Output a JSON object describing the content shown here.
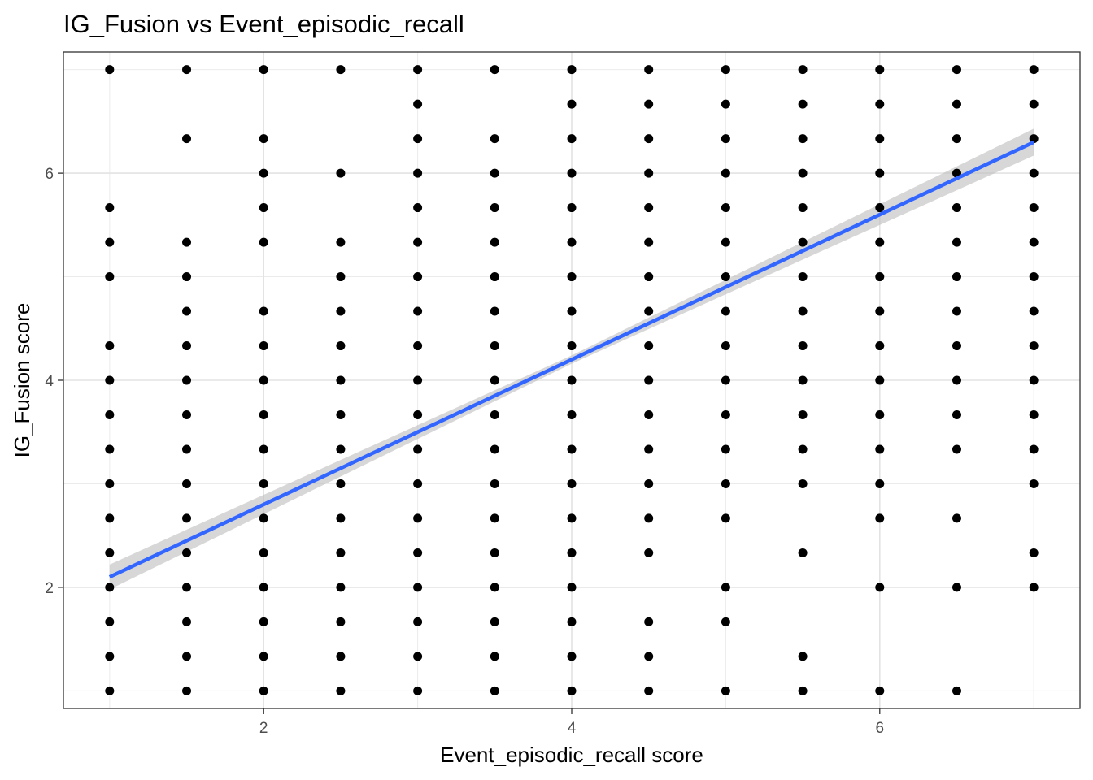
{
  "chart_data": {
    "type": "scatter",
    "title": "IG_Fusion vs Event_episodic_recall",
    "xlabel": "Event_episodic_recall score",
    "ylabel": "IG_Fusion score",
    "xlim": [
      0.7,
      7.3
    ],
    "ylim": [
      0.83,
      7.17
    ],
    "x_ticks": [
      2,
      4,
      6
    ],
    "y_ticks": [
      2,
      4,
      6
    ],
    "grid": true,
    "point_color": "#000000",
    "trend_color": "#3366FF",
    "ci_color": "#bdbdbd",
    "columns": [
      {
        "x": 1.0,
        "y": [
          7,
          5.667,
          5.333,
          5,
          4.333,
          4,
          3.667,
          3.333,
          3,
          2.667,
          2.333,
          2,
          1.667,
          1.333,
          1
        ]
      },
      {
        "x": 1.5,
        "y": [
          7,
          6.333,
          5.333,
          5,
          4.667,
          4.333,
          4,
          3.667,
          3.333,
          3,
          2.667,
          2.333,
          2,
          1.667,
          1.333,
          1
        ]
      },
      {
        "x": 2.0,
        "y": [
          7,
          6.333,
          6,
          5.667,
          5.333,
          4.667,
          4.333,
          4,
          3.667,
          3.333,
          3,
          2.667,
          2.333,
          2,
          1.667,
          1.333,
          1
        ]
      },
      {
        "x": 2.5,
        "y": [
          7,
          6,
          5.333,
          5,
          4.667,
          4.333,
          4,
          3.667,
          3.333,
          3,
          2.667,
          2.333,
          2,
          1.667,
          1.333,
          1
        ]
      },
      {
        "x": 3.0,
        "y": [
          7,
          6.667,
          6.333,
          6,
          5.667,
          5.333,
          5,
          4.667,
          4.333,
          4,
          3.667,
          3.333,
          3,
          2.667,
          2.333,
          2,
          1.667,
          1.333,
          1
        ]
      },
      {
        "x": 3.5,
        "y": [
          7,
          6.333,
          6,
          5.667,
          5.333,
          5,
          4.667,
          4.333,
          4,
          3.667,
          3.333,
          3,
          2.667,
          2.333,
          2,
          1.667,
          1.333,
          1
        ]
      },
      {
        "x": 4.0,
        "y": [
          7,
          6.667,
          6.333,
          6,
          5.667,
          5.333,
          5,
          4.667,
          4.333,
          4,
          3.667,
          3.333,
          3,
          2.667,
          2.333,
          2,
          1.667,
          1.333,
          1
        ]
      },
      {
        "x": 4.5,
        "y": [
          7,
          6.667,
          6.333,
          6,
          5.667,
          5.333,
          5,
          4.667,
          4.333,
          4,
          3.667,
          3.333,
          3,
          2.667,
          2.333,
          1.667,
          1.333,
          1
        ]
      },
      {
        "x": 5.0,
        "y": [
          7,
          6.667,
          6.333,
          6,
          5.667,
          5.333,
          5,
          4.667,
          4.333,
          4,
          3.667,
          3.333,
          3,
          2.667,
          2,
          1.667,
          1
        ]
      },
      {
        "x": 5.5,
        "y": [
          7,
          6.667,
          6.333,
          6,
          5.667,
          5.333,
          5,
          4.667,
          4.333,
          4,
          3.667,
          3.333,
          3,
          2.333,
          1.333,
          1
        ]
      },
      {
        "x": 6.0,
        "y": [
          7,
          6.667,
          6.333,
          6,
          5.667,
          5.333,
          5,
          4.667,
          4.333,
          4,
          3.667,
          3.333,
          3,
          2.667,
          2,
          1
        ]
      },
      {
        "x": 6.5,
        "y": [
          7,
          6.667,
          6.333,
          6,
          5.667,
          5.333,
          5,
          4.667,
          4.333,
          4,
          3.667,
          3.333,
          2.667,
          2,
          1
        ]
      },
      {
        "x": 7.0,
        "y": [
          7,
          6.667,
          6.333,
          6,
          5.667,
          5.333,
          5,
          4.667,
          4.333,
          4,
          3.667,
          3.333,
          3,
          2.333,
          2
        ]
      }
    ],
    "trend_line": {
      "x": [
        1,
        7
      ],
      "y": [
        2.1,
        6.3
      ]
    },
    "confidence_band": {
      "x": [
        1,
        4,
        7
      ],
      "lower": [
        1.98,
        4.16,
        6.17
      ],
      "upper": [
        2.22,
        4.24,
        6.43
      ]
    }
  }
}
